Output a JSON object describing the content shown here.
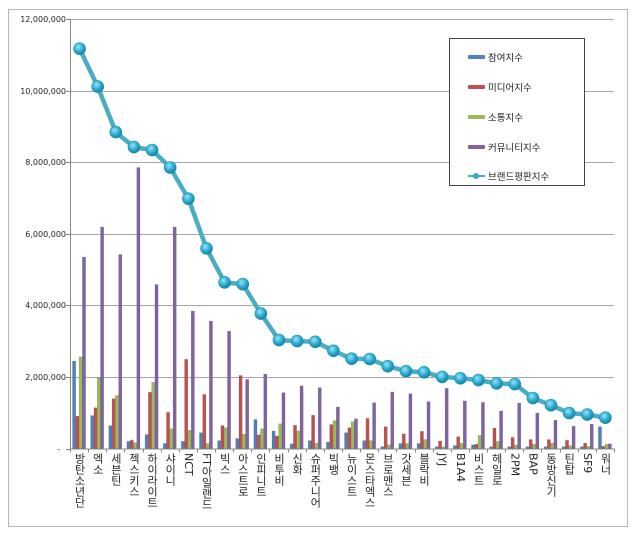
{
  "chart_data": {
    "type": "bar",
    "title": "",
    "xlabel": "",
    "ylabel": "",
    "ylim": [
      0,
      12000000
    ],
    "yticks": [
      0,
      2000000,
      4000000,
      6000000,
      8000000,
      10000000,
      12000000
    ],
    "ytick_labels": [
      "-",
      "2,000,000",
      "4,000,000",
      "6,000,000",
      "8,000,000",
      "10,000,000",
      "12,000,000"
    ],
    "grid": true,
    "legend_position": "top-right",
    "categories": [
      "방탄소년단",
      "엑소",
      "세븐틴",
      "젝스키스",
      "하이라이트",
      "샤이니",
      "NCT",
      "FT아일랜드",
      "빅스",
      "아스트로",
      "인피니트",
      "비투비",
      "신화",
      "슈퍼주니어",
      "빅뱅",
      "뉴이스트",
      "몬스타엑스",
      "브로맨스",
      "갓세븐",
      "블락비",
      "JYJ",
      "B1A4",
      "비스트",
      "헤일로",
      "2PM",
      "BAP",
      "동방신기",
      "틴탑",
      "SF9",
      "워너"
    ],
    "series": [
      {
        "name": "참여지수",
        "type": "bar",
        "color": "#4f81bd",
        "values": [
          2440000,
          920000,
          640000,
          200000,
          390000,
          140000,
          200000,
          440000,
          220000,
          280000,
          810000,
          490000,
          130000,
          220000,
          180000,
          440000,
          220000,
          50000,
          140000,
          140000,
          50000,
          80000,
          100000,
          50000,
          50000,
          50000,
          50000,
          50000,
          50000,
          610000
        ]
      },
      {
        "name": "미디어지수",
        "type": "bar",
        "color": "#c0504d",
        "values": [
          900000,
          1140000,
          1390000,
          230000,
          1570000,
          1010000,
          2490000,
          1510000,
          640000,
          2040000,
          380000,
          350000,
          650000,
          930000,
          670000,
          580000,
          840000,
          610000,
          410000,
          480000,
          210000,
          330000,
          120000,
          570000,
          310000,
          250000,
          250000,
          230000,
          150000,
          60000
        ]
      },
      {
        "name": "소통지수",
        "type": "bar",
        "color": "#9bbb59",
        "values": [
          2560000,
          1970000,
          1480000,
          160000,
          1850000,
          550000,
          510000,
          140000,
          580000,
          400000,
          550000,
          690000,
          490000,
          150000,
          780000,
          750000,
          220000,
          100000,
          140000,
          250000,
          50000,
          150000,
          370000,
          200000,
          100000,
          120000,
          150000,
          80000,
          60000,
          120000
        ]
      },
      {
        "name": "커뮤니티지수",
        "type": "bar",
        "color": "#8064a2",
        "values": [
          5350000,
          6190000,
          5420000,
          7850000,
          4580000,
          6190000,
          3840000,
          3560000,
          3280000,
          1930000,
          2080000,
          1560000,
          1750000,
          1700000,
          1160000,
          830000,
          1280000,
          1580000,
          1530000,
          1310000,
          1680000,
          1330000,
          1290000,
          1050000,
          1270000,
          990000,
          790000,
          620000,
          680000,
          130000
        ]
      },
      {
        "name": "브랜드평판지수",
        "type": "line",
        "color": "#4bacc6",
        "values": [
          11170000,
          10110000,
          8840000,
          8420000,
          8340000,
          7850000,
          6980000,
          5590000,
          4640000,
          4590000,
          3770000,
          3030000,
          3000000,
          2980000,
          2730000,
          2510000,
          2500000,
          2300000,
          2160000,
          2130000,
          2000000,
          1960000,
          1910000,
          1820000,
          1800000,
          1410000,
          1210000,
          990000,
          950000,
          860000
        ]
      }
    ]
  }
}
